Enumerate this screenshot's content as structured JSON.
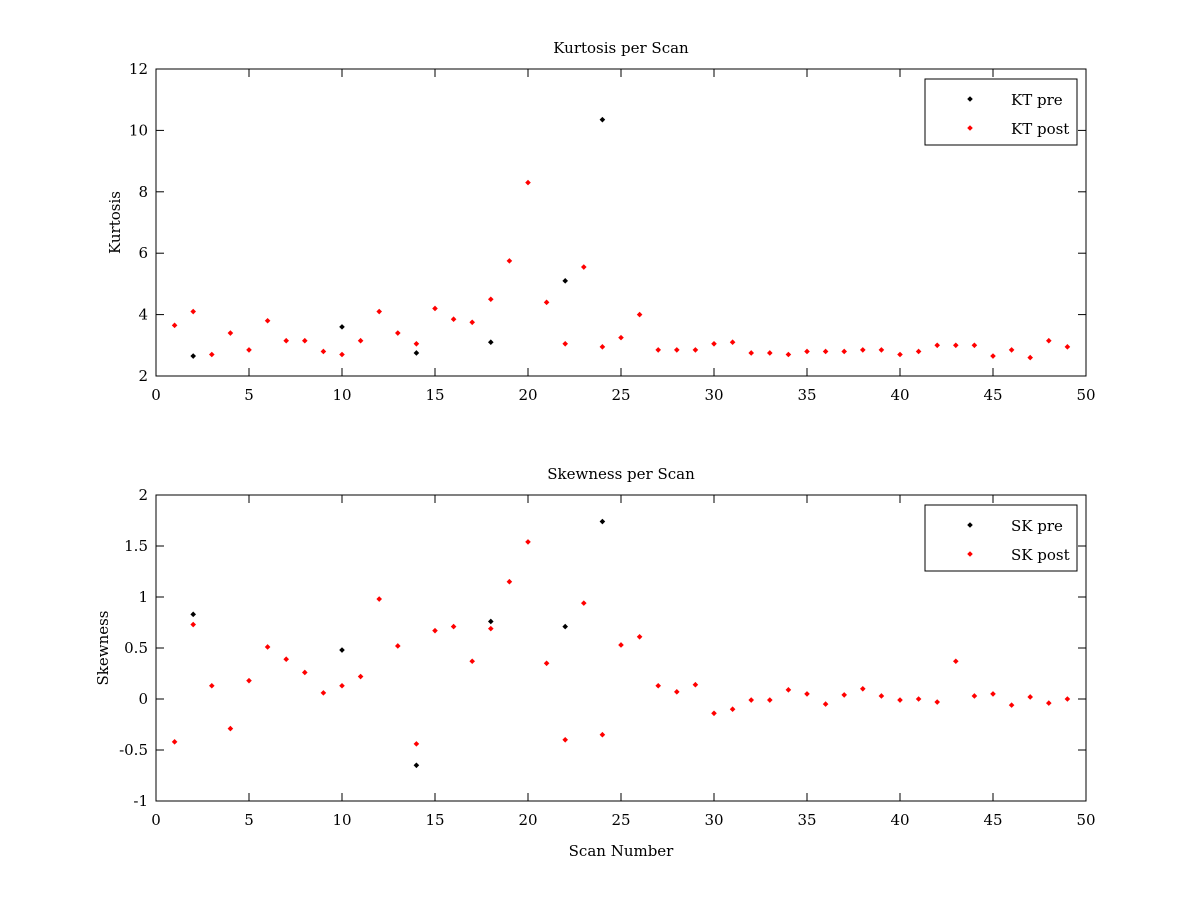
{
  "chart_data": [
    {
      "type": "scatter",
      "title": "Kurtosis per Scan",
      "xlabel": "",
      "ylabel": "Kurtosis",
      "xlim": [
        0,
        50
      ],
      "ylim": [
        2,
        12
      ],
      "xticks": [
        0,
        5,
        10,
        15,
        20,
        25,
        30,
        35,
        40,
        45,
        50
      ],
      "yticks": [
        2,
        4,
        6,
        8,
        10,
        12
      ],
      "grid": false,
      "legend_position": "top-right",
      "series": [
        {
          "name": "KT pre",
          "color": "#000000",
          "points": [
            [
              2,
              2.65
            ],
            [
              10,
              3.6
            ],
            [
              14,
              2.75
            ],
            [
              18,
              3.1
            ],
            [
              22,
              5.1
            ],
            [
              24,
              10.35
            ]
          ]
        },
        {
          "name": "KT post",
          "color": "#ff0000",
          "points": [
            [
              1,
              3.65
            ],
            [
              2,
              4.1
            ],
            [
              3,
              2.7
            ],
            [
              4,
              3.4
            ],
            [
              5,
              2.85
            ],
            [
              6,
              3.8
            ],
            [
              7,
              3.15
            ],
            [
              8,
              3.15
            ],
            [
              9,
              2.8
            ],
            [
              10,
              2.7
            ],
            [
              11,
              3.15
            ],
            [
              12,
              4.1
            ],
            [
              13,
              3.4
            ],
            [
              14,
              3.05
            ],
            [
              15,
              4.2
            ],
            [
              16,
              3.85
            ],
            [
              17,
              3.75
            ],
            [
              18,
              4.5
            ],
            [
              19,
              5.75
            ],
            [
              20,
              8.3
            ],
            [
              21,
              4.4
            ],
            [
              22,
              3.05
            ],
            [
              23,
              5.55
            ],
            [
              24,
              2.95
            ],
            [
              25,
              3.25
            ],
            [
              26,
              4.0
            ],
            [
              27,
              2.85
            ],
            [
              28,
              2.85
            ],
            [
              29,
              2.85
            ],
            [
              30,
              3.05
            ],
            [
              31,
              3.1
            ],
            [
              32,
              2.75
            ],
            [
              33,
              2.75
            ],
            [
              34,
              2.7
            ],
            [
              35,
              2.8
            ],
            [
              36,
              2.8
            ],
            [
              37,
              2.8
            ],
            [
              38,
              2.85
            ],
            [
              39,
              2.85
            ],
            [
              40,
              2.7
            ],
            [
              41,
              2.8
            ],
            [
              42,
              3.0
            ],
            [
              43,
              3.0
            ],
            [
              44,
              3.0
            ],
            [
              45,
              2.65
            ],
            [
              46,
              2.85
            ],
            [
              47,
              2.6
            ],
            [
              48,
              3.15
            ],
            [
              49,
              2.95
            ]
          ]
        }
      ]
    },
    {
      "type": "scatter",
      "title": "Skewness per Scan",
      "xlabel": "Scan Number",
      "ylabel": "Skewness",
      "xlim": [
        0,
        50
      ],
      "ylim": [
        -1,
        2
      ],
      "xticks": [
        0,
        5,
        10,
        15,
        20,
        25,
        30,
        35,
        40,
        45,
        50
      ],
      "yticks": [
        -1,
        -0.5,
        0,
        0.5,
        1,
        1.5,
        2
      ],
      "grid": false,
      "legend_position": "top-right",
      "series": [
        {
          "name": "SK pre",
          "color": "#000000",
          "points": [
            [
              2,
              0.83
            ],
            [
              10,
              0.48
            ],
            [
              14,
              -0.65
            ],
            [
              18,
              0.76
            ],
            [
              22,
              0.71
            ],
            [
              24,
              1.74
            ]
          ]
        },
        {
          "name": "SK post",
          "color": "#ff0000",
          "points": [
            [
              1,
              -0.42
            ],
            [
              2,
              0.73
            ],
            [
              3,
              0.13
            ],
            [
              4,
              -0.29
            ],
            [
              5,
              0.18
            ],
            [
              6,
              0.51
            ],
            [
              7,
              0.39
            ],
            [
              8,
              0.26
            ],
            [
              9,
              0.06
            ],
            [
              10,
              0.13
            ],
            [
              11,
              0.22
            ],
            [
              12,
              0.98
            ],
            [
              13,
              0.52
            ],
            [
              14,
              -0.44
            ],
            [
              15,
              0.67
            ],
            [
              16,
              0.71
            ],
            [
              17,
              0.37
            ],
            [
              18,
              0.69
            ],
            [
              19,
              1.15
            ],
            [
              20,
              1.54
            ],
            [
              21,
              0.35
            ],
            [
              22,
              -0.4
            ],
            [
              23,
              0.94
            ],
            [
              24,
              -0.35
            ],
            [
              25,
              0.53
            ],
            [
              26,
              0.61
            ],
            [
              27,
              0.13
            ],
            [
              28,
              0.07
            ],
            [
              29,
              0.14
            ],
            [
              30,
              -0.14
            ],
            [
              31,
              -0.1
            ],
            [
              32,
              -0.01
            ],
            [
              33,
              -0.01
            ],
            [
              34,
              0.09
            ],
            [
              35,
              0.05
            ],
            [
              36,
              -0.05
            ],
            [
              37,
              0.04
            ],
            [
              38,
              0.1
            ],
            [
              39,
              0.03
            ],
            [
              40,
              -0.01
            ],
            [
              41,
              0.0
            ],
            [
              42,
              -0.03
            ],
            [
              43,
              0.37
            ],
            [
              44,
              0.03
            ],
            [
              45,
              0.05
            ],
            [
              46,
              -0.06
            ],
            [
              47,
              0.02
            ],
            [
              48,
              -0.04
            ],
            [
              49,
              0.0
            ]
          ]
        }
      ]
    }
  ]
}
